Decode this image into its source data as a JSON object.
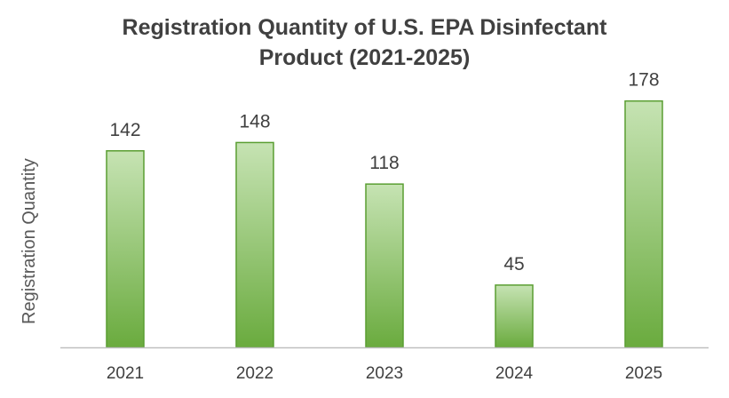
{
  "chart_data": {
    "type": "bar",
    "title_lines": [
      "Registration Quantity of U.S. EPA Disinfectant",
      "Product (2021-2025)"
    ],
    "ylabel": "Registration Quantity",
    "xlabel": "",
    "categories": [
      "2021",
      "2022",
      "2023",
      "2024",
      "2025"
    ],
    "values": [
      142,
      148,
      118,
      45,
      178
    ],
    "data_labels": [
      "142",
      "148",
      "118",
      "45",
      "178"
    ],
    "ylim": [
      0,
      190
    ],
    "grid": false,
    "legend": "none",
    "colors": {
      "bar_top": "#c6e3b3",
      "bar_bottom": "#6aab3e",
      "bar_edge": "#5a9e32",
      "axis": "#bfbfbf"
    }
  }
}
